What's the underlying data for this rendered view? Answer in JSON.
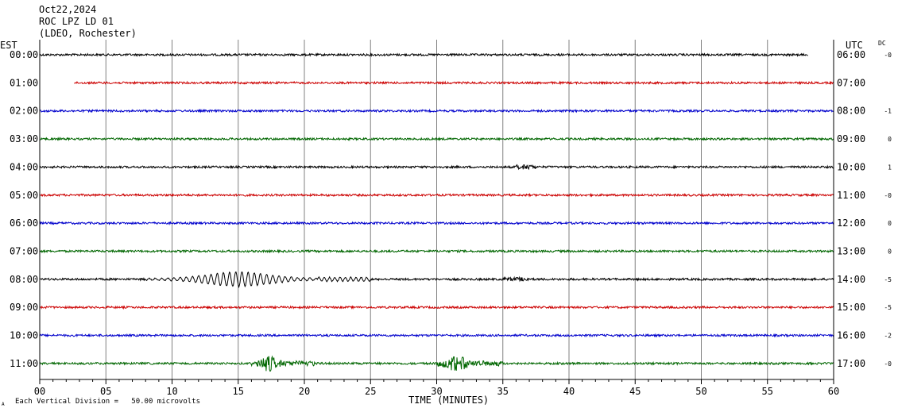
{
  "header": {
    "date": "Oct22,2024",
    "station": "ROC LPZ LD 01",
    "network": "(LDEO, Rochester)"
  },
  "labels": {
    "left_tz": "EST",
    "right_tz": "UTC",
    "dc": "DC",
    "x_title": "TIME (MINUTES)",
    "footnote": "Each Vertical Division =   50.00 microvolts",
    "corner_mark": "A"
  },
  "colors": {
    "black": "#000000",
    "red": "#cc0000",
    "blue": "#0000cc",
    "green": "#006600",
    "grid": "#808080",
    "axis": "#000000"
  },
  "chart_data": {
    "type": "line",
    "x_ticks": [
      "00",
      "05",
      "10",
      "15",
      "20",
      "25",
      "30",
      "35",
      "40",
      "45",
      "50",
      "55",
      "60"
    ],
    "x_range": [
      0,
      60
    ],
    "grid": true,
    "rows": [
      {
        "est": "00:00",
        "utc": "06:00",
        "dc": "-0",
        "color": "black",
        "start_min": 0,
        "end_min": 58.1
      },
      {
        "est": "01:00",
        "utc": "07:00",
        "dc": "",
        "color": "red",
        "start_min": 2.6,
        "end_min": 60
      },
      {
        "est": "02:00",
        "utc": "08:00",
        "dc": "-1",
        "color": "blue",
        "start_min": 0,
        "end_min": 60
      },
      {
        "est": "03:00",
        "utc": "09:00",
        "dc": "0",
        "color": "green",
        "start_min": 0,
        "end_min": 60
      },
      {
        "est": "04:00",
        "utc": "10:00",
        "dc": "1",
        "color": "black",
        "start_min": 0,
        "end_min": 60
      },
      {
        "est": "05:00",
        "utc": "11:00",
        "dc": "-0",
        "color": "red",
        "start_min": 0,
        "end_min": 60
      },
      {
        "est": "06:00",
        "utc": "12:00",
        "dc": "0",
        "color": "blue",
        "start_min": 0,
        "end_min": 60
      },
      {
        "est": "07:00",
        "utc": "13:00",
        "dc": "0",
        "color": "green",
        "start_min": 0,
        "end_min": 60
      },
      {
        "est": "08:00",
        "utc": "14:00",
        "dc": "-5",
        "color": "black",
        "start_min": 0,
        "end_min": 60
      },
      {
        "est": "09:00",
        "utc": "15:00",
        "dc": "-5",
        "color": "red",
        "start_min": 0,
        "end_min": 60
      },
      {
        "est": "10:00",
        "utc": "16:00",
        "dc": "-2",
        "color": "blue",
        "start_min": 0,
        "end_min": 60
      },
      {
        "est": "11:00",
        "utc": "17:00",
        "dc": "-0",
        "color": "green",
        "start_min": 0,
        "end_min": 60
      }
    ]
  }
}
